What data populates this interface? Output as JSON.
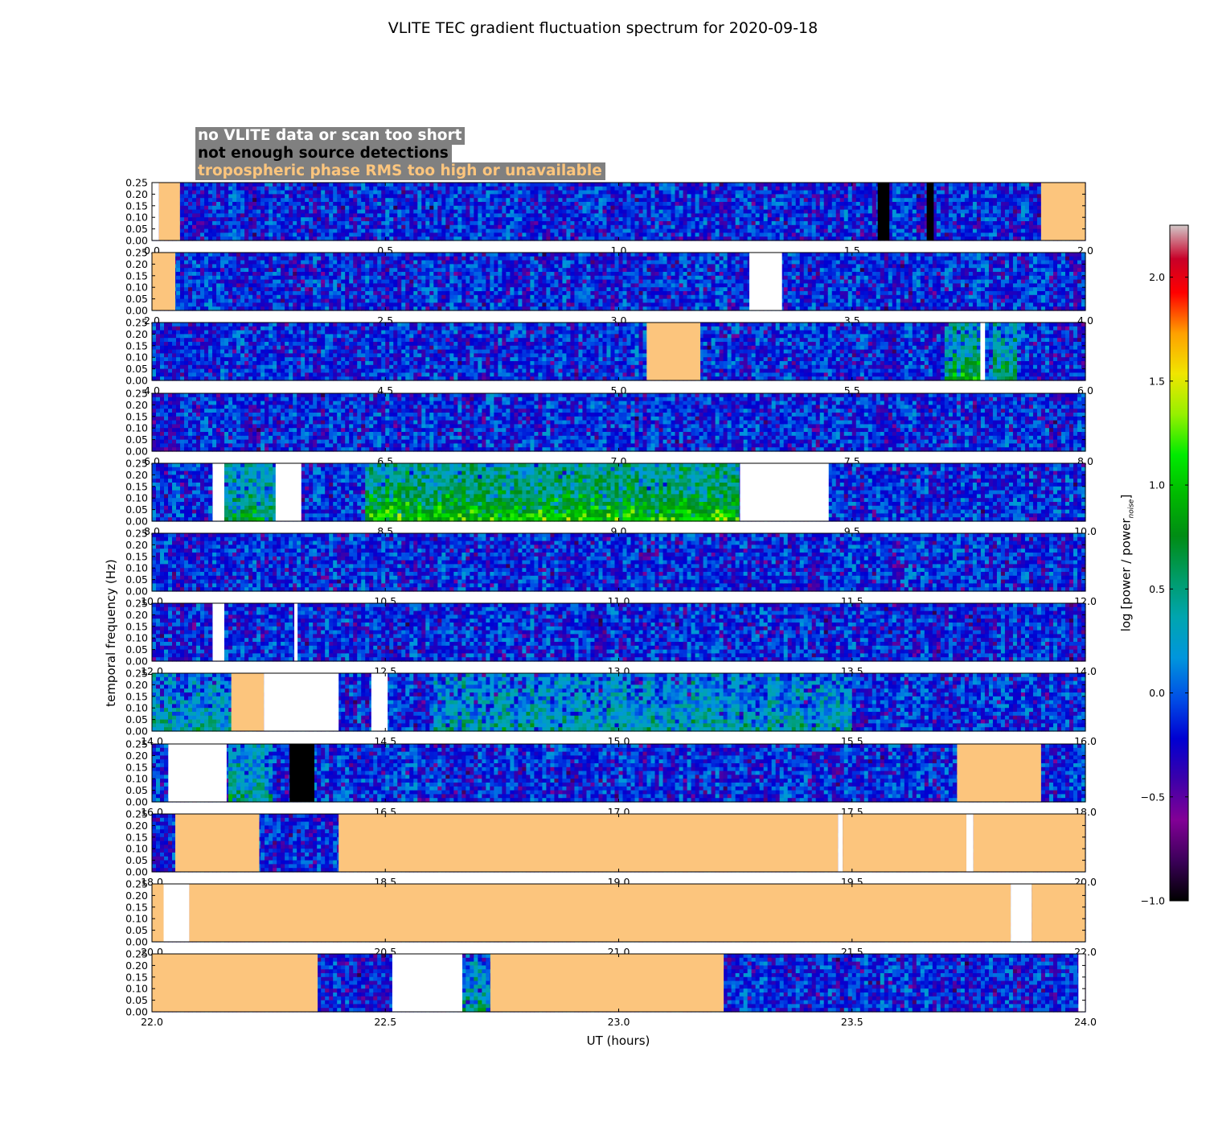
{
  "chart_data": {
    "type": "heatmap",
    "title": "VLITE TEC gradient fluctuation spectrum for 2020-09-18",
    "xlabel": "UT (hours)",
    "ylabel": "temporal frequency (Hz)",
    "colorbar": {
      "label_main": "log [power / power",
      "label_sub": "noise",
      "label_end": "]",
      "range": [
        -1.0,
        2.25
      ],
      "ticks": [
        -1.0,
        -0.5,
        0.0,
        0.5,
        1.0,
        1.5,
        2.0
      ],
      "tick_labels": [
        "−1.0",
        "−0.5",
        "0.0",
        "0.5",
        "1.0",
        "1.5",
        "2.0"
      ]
    },
    "legend": [
      {
        "text": "no VLITE data or scan too short",
        "color": "#ffffff"
      },
      {
        "text": "not enough source detections",
        "color": "#000000"
      },
      {
        "text": "tropospheric phase RMS too high or unavailable",
        "color": "#fcc57d"
      }
    ],
    "ylim": [
      0,
      0.25
    ],
    "ytick_labels": [
      "0.00",
      "0.05",
      "0.10",
      "0.15",
      "0.20",
      "0.25"
    ],
    "panels": [
      {
        "xlim": [
          0.0,
          2.0
        ],
        "xtick_labels": [
          "0.0",
          "0.5",
          "1.0",
          "1.5",
          "2.0"
        ],
        "masks": [
          {
            "type": "nodata",
            "start": 0.0,
            "end": 0.015
          },
          {
            "type": "tropo",
            "start": 0.015,
            "end": 0.06
          },
          {
            "type": "detect",
            "start": 1.555,
            "end": 1.58
          },
          {
            "type": "detect",
            "start": 1.66,
            "end": 1.675
          },
          {
            "type": "tropo",
            "start": 1.905,
            "end": 2.0
          }
        ],
        "activity": []
      },
      {
        "xlim": [
          2.0,
          4.0
        ],
        "xtick_labels": [
          "2.0",
          "2.5",
          "3.0",
          "3.5",
          "4.0"
        ],
        "masks": [
          {
            "type": "tropo",
            "start": 2.0,
            "end": 2.05
          },
          {
            "type": "nodata",
            "start": 3.28,
            "end": 3.35
          }
        ],
        "activity": []
      },
      {
        "xlim": [
          4.0,
          6.0
        ],
        "xtick_labels": [
          "4.0",
          "4.5",
          "5.0",
          "5.5",
          "6.0"
        ],
        "masks": [
          {
            "type": "tropo",
            "start": 5.06,
            "end": 5.175
          },
          {
            "type": "nodata",
            "start": 5.775,
            "end": 5.785
          }
        ],
        "activity": [
          {
            "start": 5.7,
            "end": 5.78,
            "level": 0.9
          },
          {
            "start": 5.8,
            "end": 5.85,
            "level": 0.8
          }
        ]
      },
      {
        "xlim": [
          6.0,
          8.0
        ],
        "xtick_labels": [
          "6.0",
          "6.5",
          "7.0",
          "7.5",
          "8.0"
        ],
        "masks": [],
        "activity": []
      },
      {
        "xlim": [
          8.0,
          10.0
        ],
        "xtick_labels": [
          "8.0",
          "8.5",
          "9.0",
          "9.5",
          "10.0"
        ],
        "masks": [
          {
            "type": "nodata",
            "start": 8.13,
            "end": 8.155
          },
          {
            "type": "nodata",
            "start": 8.265,
            "end": 8.32
          },
          {
            "type": "nodata",
            "start": 9.26,
            "end": 9.45
          }
        ],
        "activity": [
          {
            "start": 8.155,
            "end": 8.265,
            "level": 0.8
          },
          {
            "start": 8.46,
            "end": 9.26,
            "level": 1.2
          }
        ]
      },
      {
        "xlim": [
          10.0,
          12.0
        ],
        "xtick_labels": [
          "10.0",
          "10.5",
          "11.0",
          "11.5",
          "12.0"
        ],
        "masks": [],
        "activity": []
      },
      {
        "xlim": [
          12.0,
          14.0
        ],
        "xtick_labels": [
          "12.0",
          "12.5",
          "13.0",
          "13.5",
          "14.0"
        ],
        "masks": [
          {
            "type": "nodata",
            "start": 12.13,
            "end": 12.155
          },
          {
            "type": "nodata",
            "start": 12.305,
            "end": 12.312
          }
        ],
        "activity": []
      },
      {
        "xlim": [
          14.0,
          16.0
        ],
        "xtick_labels": [
          "14.0",
          "14.5",
          "15.0",
          "15.5",
          "16.0"
        ],
        "masks": [
          {
            "type": "tropo",
            "start": 14.17,
            "end": 14.24
          },
          {
            "type": "nodata",
            "start": 14.24,
            "end": 14.4
          },
          {
            "type": "nodata",
            "start": 14.47,
            "end": 14.505
          }
        ],
        "activity": [
          {
            "start": 14.0,
            "end": 14.17,
            "level": 0.5
          },
          {
            "start": 14.6,
            "end": 15.5,
            "level": 0.5
          }
        ]
      },
      {
        "xlim": [
          16.0,
          18.0
        ],
        "xtick_labels": [
          "16.0",
          "16.5",
          "17.0",
          "17.5",
          "18.0"
        ],
        "masks": [
          {
            "type": "nodata",
            "start": 16.035,
            "end": 16.16
          },
          {
            "type": "detect",
            "start": 16.295,
            "end": 16.348
          },
          {
            "type": "tropo",
            "start": 17.725,
            "end": 17.905
          }
        ],
        "activity": [
          {
            "start": 16.16,
            "end": 16.26,
            "level": 0.6
          }
        ]
      },
      {
        "xlim": [
          18.0,
          20.0
        ],
        "xtick_labels": [
          "18.0",
          "18.5",
          "19.0",
          "19.5",
          "20.0"
        ],
        "masks": [
          {
            "type": "tropo",
            "start": 18.05,
            "end": 18.23
          },
          {
            "type": "tropo",
            "start": 18.4,
            "end": 19.47
          },
          {
            "type": "nodata",
            "start": 19.47,
            "end": 19.48
          },
          {
            "type": "tropo",
            "start": 19.48,
            "end": 19.745
          },
          {
            "type": "nodata",
            "start": 19.745,
            "end": 19.76
          },
          {
            "type": "tropo",
            "start": 19.76,
            "end": 20.0
          }
        ],
        "activity": []
      },
      {
        "xlim": [
          20.0,
          22.0
        ],
        "xtick_labels": [
          "20.0",
          "20.5",
          "21.0",
          "21.5",
          "22.0"
        ],
        "masks": [
          {
            "type": "tropo",
            "start": 20.0,
            "end": 20.025
          },
          {
            "type": "nodata",
            "start": 20.025,
            "end": 20.08
          },
          {
            "type": "tropo",
            "start": 20.08,
            "end": 21.84
          },
          {
            "type": "nodata",
            "start": 21.84,
            "end": 21.885
          },
          {
            "type": "tropo",
            "start": 21.885,
            "end": 22.0
          }
        ],
        "activity": []
      },
      {
        "xlim": [
          22.0,
          24.0
        ],
        "xtick_labels": [
          "22.0",
          "22.5",
          "23.0",
          "23.5",
          "24.0"
        ],
        "masks": [
          {
            "type": "tropo",
            "start": 22.0,
            "end": 22.355
          },
          {
            "type": "nodata",
            "start": 22.515,
            "end": 22.665
          },
          {
            "type": "tropo",
            "start": 22.725,
            "end": 23.225
          },
          {
            "type": "nodata",
            "start": 23.985,
            "end": 24.0
          }
        ],
        "activity": [
          {
            "start": 22.665,
            "end": 22.725,
            "level": 0.6
          }
        ]
      }
    ]
  }
}
